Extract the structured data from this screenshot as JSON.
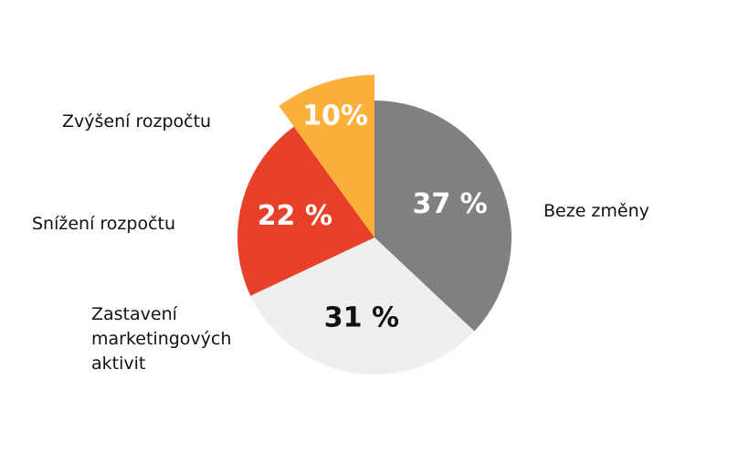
{
  "chart_data": {
    "type": "pie",
    "categories": [
      "Beze změny",
      "Zastavení marketingových aktivit",
      "Snížení rozpočtu",
      "Zvýšení rozpočtu"
    ],
    "values": [
      37,
      31,
      22,
      10
    ],
    "value_labels": [
      "37 %",
      "31 %",
      "22 %",
      "10%"
    ],
    "colors": [
      "#808080",
      "#efefef",
      "#e8412a",
      "#fbb03b"
    ],
    "label_colors": [
      "#ffffff",
      "#111111",
      "#ffffff",
      "#ffffff"
    ],
    "exploded": [
      false,
      false,
      false,
      true
    ]
  }
}
